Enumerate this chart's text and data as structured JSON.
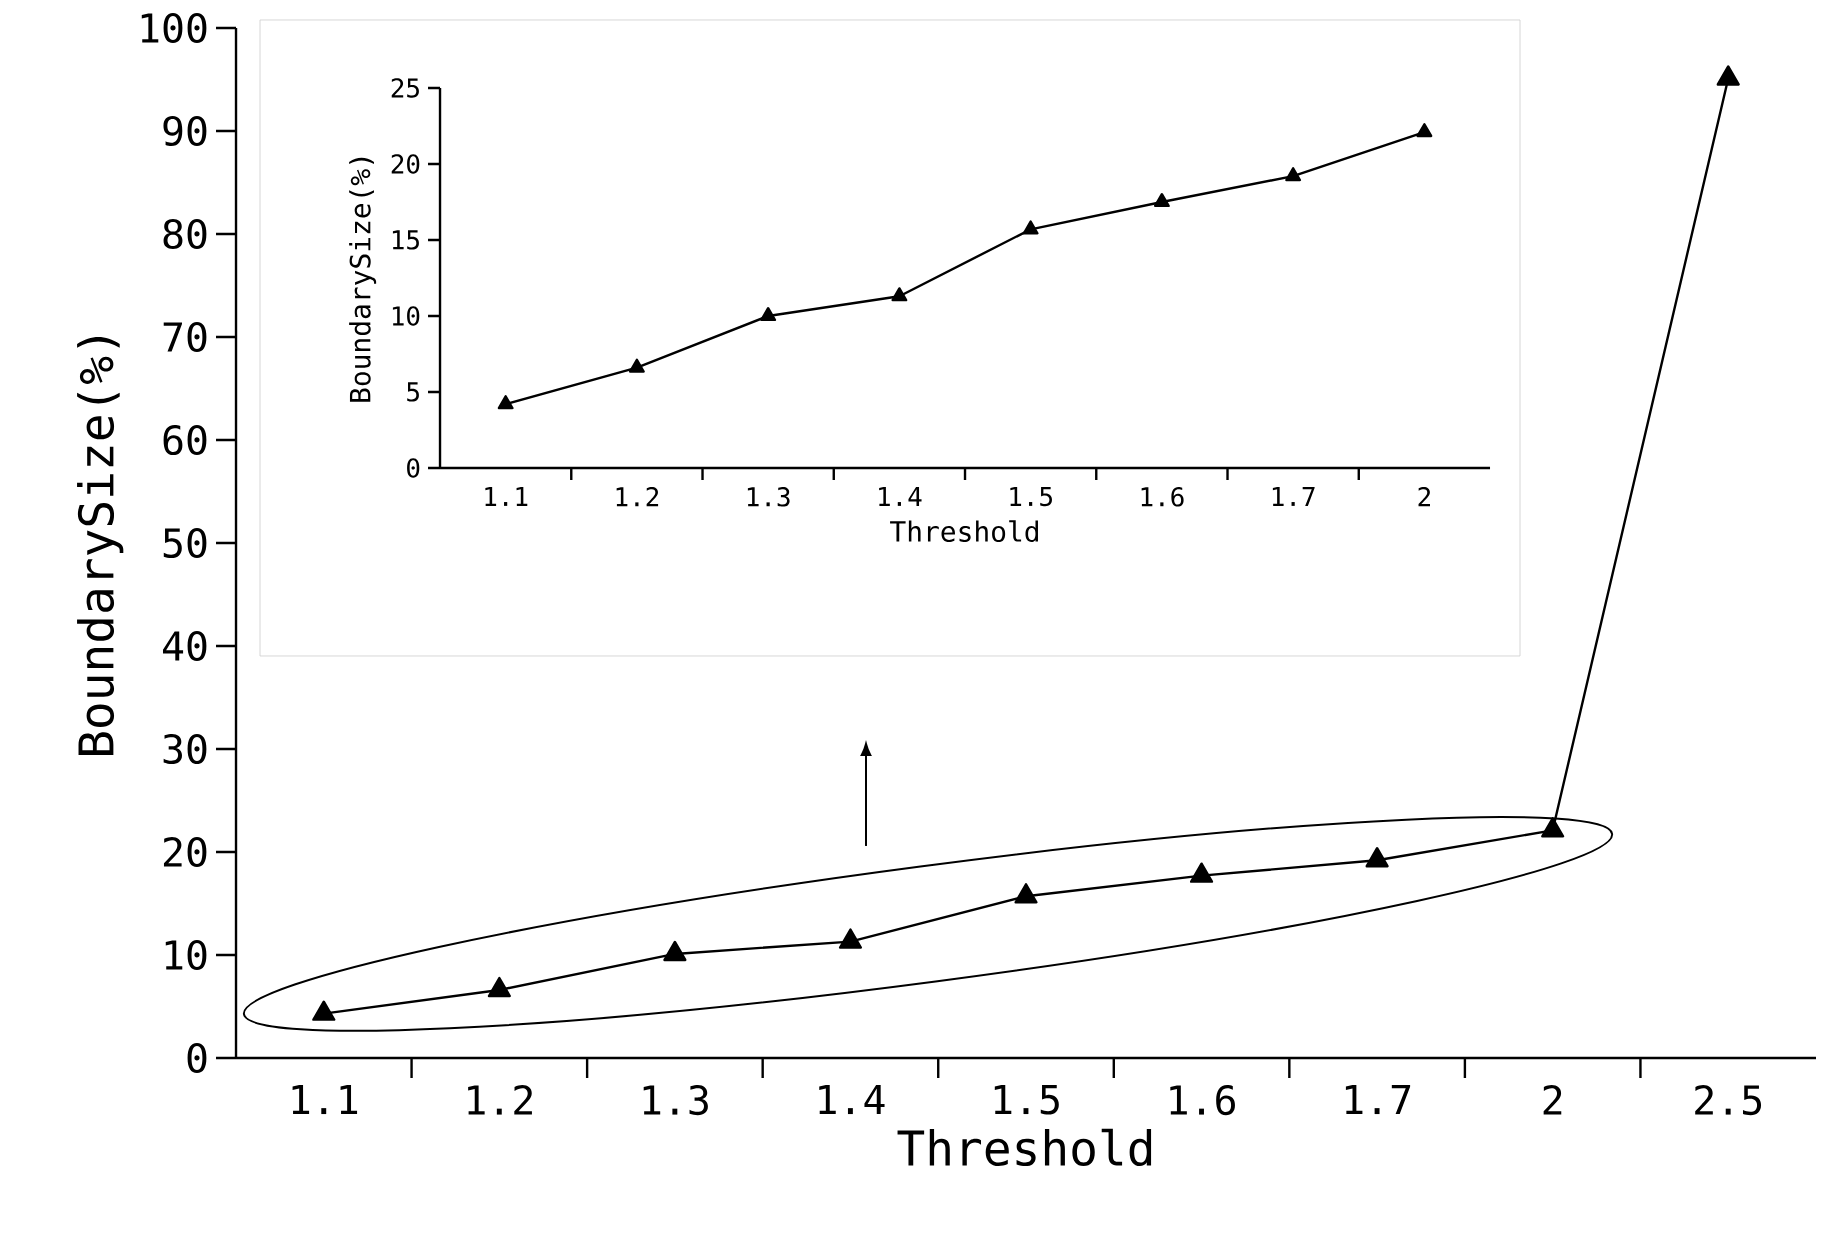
{
  "chart_data": [
    {
      "type": "line",
      "xlabel": "Threshold",
      "ylabel": "BoundarySize(%)",
      "categories": [
        "1.1",
        "1.2",
        "1.3",
        "1.4",
        "1.5",
        "1.6",
        "1.7",
        "2",
        "2.5"
      ],
      "values": [
        4.3,
        6.6,
        10.1,
        11.3,
        15.7,
        17.7,
        19.2,
        22.1,
        95.1
      ],
      "color": "#000000",
      "marker": "triangle",
      "line_style": "solid",
      "ylim": [
        0,
        100
      ],
      "yticks": [
        0,
        10,
        20,
        30,
        40,
        50,
        60,
        70,
        80,
        90,
        100
      ]
    },
    {
      "type": "line",
      "xlabel": "Threshold",
      "ylabel": "BoundarySize(%)",
      "categories": [
        "1.1",
        "1.2",
        "1.3",
        "1.4",
        "1.5",
        "1.6",
        "1.7",
        "2"
      ],
      "values": [
        4.2,
        6.6,
        10.0,
        11.3,
        15.7,
        17.5,
        19.2,
        22.1
      ],
      "color": "#000000",
      "marker": "triangle",
      "line_style": "solid",
      "ylim": [
        0,
        25
      ],
      "yticks": [
        0,
        5,
        10,
        15,
        20,
        25
      ]
    }
  ]
}
